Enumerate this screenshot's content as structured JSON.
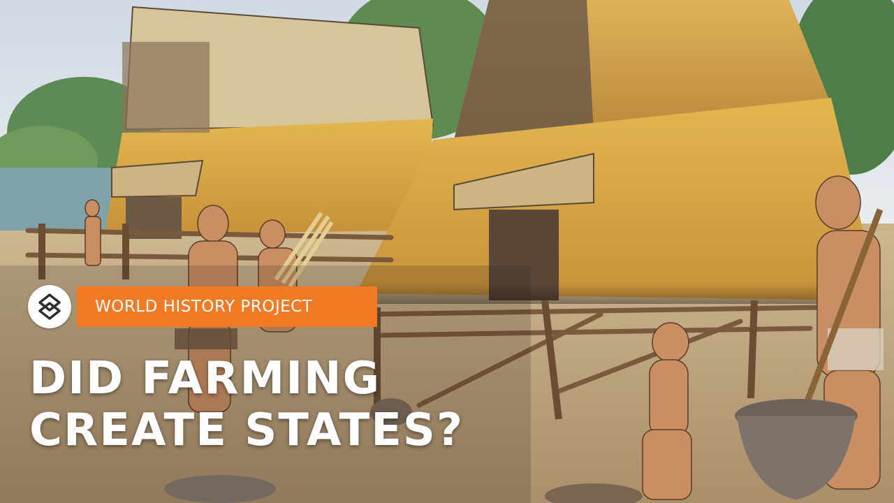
{
  "badge": {
    "logo_icon": "world-history-project-logo-icon",
    "label": "WORLD HISTORY PROJECT",
    "label_bg": "#f27a25"
  },
  "title": {
    "line1": "DID FARMING",
    "line2": "CREATE STATES?",
    "color": "#ffffff"
  }
}
